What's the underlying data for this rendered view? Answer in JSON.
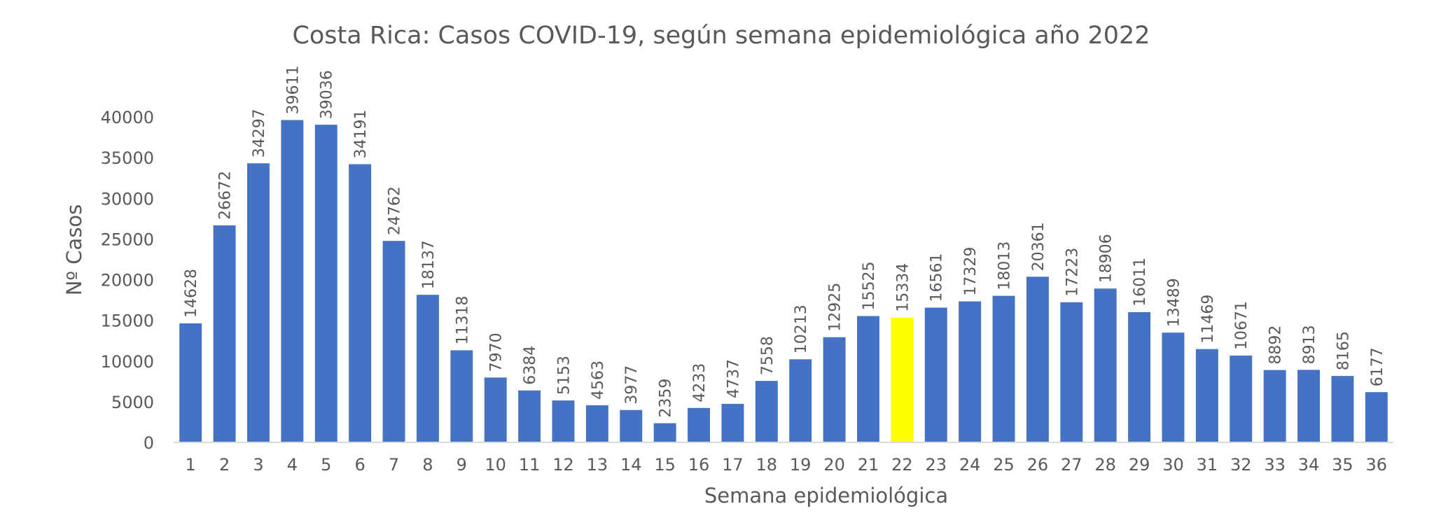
{
  "chart_data": {
    "type": "bar",
    "title": "Costa Rica: Casos  COVID-19, según semana epidemiológica  año  2022",
    "xlabel": "Semana epidemiológica",
    "ylabel": "Nº Casos",
    "ylim": [
      0,
      40000
    ],
    "yticks": [
      0,
      5000,
      10000,
      15000,
      20000,
      25000,
      30000,
      35000,
      40000
    ],
    "grid": false,
    "legend": "none",
    "categories": [
      "1",
      "2",
      "3",
      "4",
      "5",
      "6",
      "7",
      "8",
      "9",
      "10",
      "11",
      "12",
      "13",
      "14",
      "15",
      "16",
      "17",
      "18",
      "19",
      "20",
      "21",
      "22",
      "23",
      "24",
      "25",
      "26",
      "27",
      "28",
      "29",
      "30",
      "31",
      "32",
      "33",
      "34",
      "35",
      "36"
    ],
    "series": [
      {
        "name": "Casos",
        "values": [
          14628,
          26672,
          34297,
          39611,
          39036,
          34191,
          24762,
          18137,
          11318,
          7970,
          6384,
          5153,
          4563,
          3977,
          2359,
          4233,
          4737,
          7558,
          10213,
          12925,
          15525,
          15334,
          16561,
          17329,
          18013,
          20361,
          17223,
          18906,
          16011,
          13489,
          11469,
          10671,
          8892,
          8913,
          8165,
          6177
        ]
      }
    ],
    "highlight_category": "22",
    "colors": {
      "bar": "#4472C4",
      "highlight": "#FFFF00",
      "text": "#595959",
      "axis_line": "#D9D9D9"
    }
  }
}
